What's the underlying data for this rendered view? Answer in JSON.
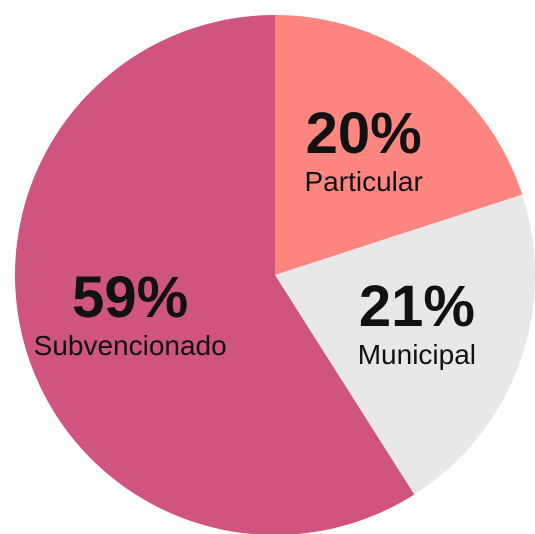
{
  "chart_data": {
    "type": "pie",
    "categories": [
      "Particular",
      "Municipal",
      "Subvencionado"
    ],
    "values": [
      20,
      21,
      59
    ],
    "value_labels": [
      "20%",
      "21%",
      "59%"
    ],
    "colors": [
      "#ff8580",
      "#e8e8e8",
      "#cf5580"
    ]
  }
}
